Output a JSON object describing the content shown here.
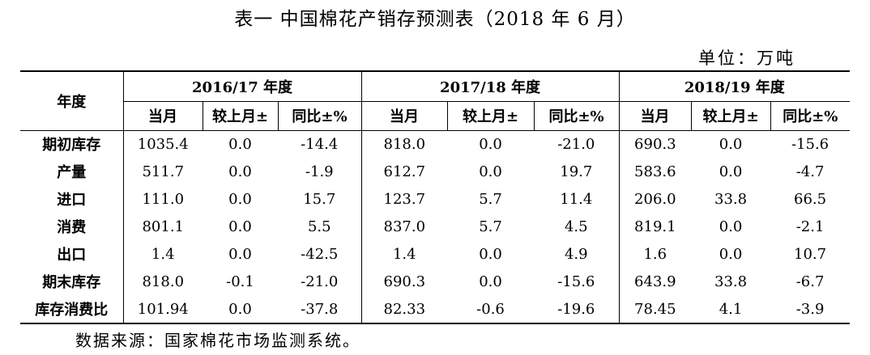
{
  "title": "表一  中国棉花产销存预测表（2018 年 6 月）",
  "unit": "单位：万吨",
  "header": {
    "corner": "年度",
    "years": [
      "2016/17 年度",
      "2017/18 年度",
      "2018/19 年度"
    ],
    "sub": [
      "当月",
      "较上月±",
      "同比±%"
    ]
  },
  "rows": [
    {
      "label": "期初库存",
      "values": [
        "1035.4",
        "0.0",
        "-14.4",
        "818.0",
        "0.0",
        "-21.0",
        "690.3",
        "0.0",
        "-15.6"
      ]
    },
    {
      "label": "产量",
      "values": [
        "511.7",
        "0.0",
        "-1.9",
        "612.7",
        "0.0",
        "19.7",
        "583.6",
        "0.0",
        "-4.7"
      ]
    },
    {
      "label": "进口",
      "values": [
        "111.0",
        "0.0",
        "15.7",
        "123.7",
        "5.7",
        "11.4",
        "206.0",
        "33.8",
        "66.5"
      ]
    },
    {
      "label": "消费",
      "values": [
        "801.1",
        "0.0",
        "5.5",
        "837.0",
        "5.7",
        "4.5",
        "819.1",
        "0.0",
        "-2.1"
      ]
    },
    {
      "label": "出口",
      "values": [
        "1.4",
        "0.0",
        "-42.5",
        "1.4",
        "0.0",
        "4.9",
        "1.6",
        "0.0",
        "10.7"
      ]
    },
    {
      "label": "期末库存",
      "values": [
        "818.0",
        "-0.1",
        "-21.0",
        "690.3",
        "0.0",
        "-15.6",
        "643.9",
        "33.8",
        "-6.7"
      ]
    },
    {
      "label": "库存消费比",
      "values": [
        "101.94",
        "0.0",
        "-37.8",
        "82.33",
        "-0.6",
        "-19.6",
        "78.45",
        "4.1",
        "-3.9"
      ]
    }
  ],
  "source": "数据来源：国家棉花市场监测系统。"
}
